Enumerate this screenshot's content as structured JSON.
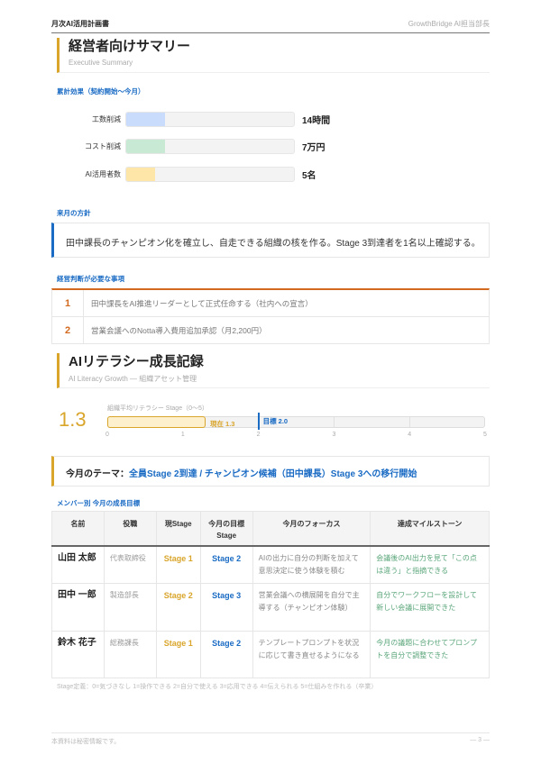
{
  "header": {
    "title": "月次AI活用計画書",
    "author": "GrowthBridge AI担当部長"
  },
  "summary": {
    "title": "経営者向けサマリー",
    "subtitle": "Executive Summary",
    "effects_label": "累計効果（契約開始〜今月）",
    "effects": [
      {
        "label": "工数削減",
        "value": "14時間",
        "fill_pct": 23,
        "color": "#c9dcfb"
      },
      {
        "label": "コスト削減",
        "value": "7万円",
        "fill_pct": 23,
        "color": "#c8ead5"
      },
      {
        "label": "AI活用者数",
        "value": "5名",
        "fill_pct": 17,
        "color": "#fde6a8"
      }
    ],
    "policy_label": "来月の方針",
    "policy": "田中課長のチャンピオン化を確立し、自走できる組織の核を作る。Stage 3到達者を1名以上確認する。",
    "decisions_label": "経営判断が必要な事項",
    "decisions": [
      {
        "no": "1",
        "text": "田中課長をAI推進リーダーとして正式任命する（社内への宣言）"
      },
      {
        "no": "2",
        "text": "営業会議へのNotta導入費用追加承認（月2,200円）"
      }
    ]
  },
  "literacy": {
    "title": "AIリテラシー成長記録",
    "subtitle": "AI Literacy Growth — 組織アセット管理",
    "average": "1.3",
    "gauge_label": "組織平均リテラシー Stage（0〜5）",
    "current": 1.3,
    "current_label": "現在 1.3",
    "target": 2.0,
    "target_label": "目標 2.0",
    "scale_max": 5,
    "ticks": [
      "0",
      "1",
      "2",
      "3",
      "4",
      "5"
    ],
    "theme_label": "今月のテーマ：",
    "theme": "全員Stage 2到達 / チャンピオン候補（田中課長）Stage 3への移行開始",
    "members_label": "メンバー別 今月の成長目標",
    "columns": [
      "名前",
      "役職",
      "現Stage",
      "今月の目標Stage",
      "今月のフォーカス",
      "達成マイルストーン"
    ],
    "members": [
      {
        "name": "山田 太郎",
        "role": "代表取締役",
        "current": "Stage 1",
        "goal": "Stage 2",
        "focus": "AIの出力に自分の判断を加えて意思決定に使う体験を積む",
        "milestone": "会議後のAI出力を見て「この点は違う」と指摘できる"
      },
      {
        "name": "田中 一郎",
        "role": "製造部長",
        "current": "Stage 2",
        "goal": "Stage 3",
        "focus": "営業会議への横展開を自分で主導する（チャンピオン体験）",
        "milestone": "自分でワークフローを設計して新しい会議に展開できた"
      },
      {
        "name": "鈴木 花子",
        "role": "総務課長",
        "current": "Stage 1",
        "goal": "Stage 2",
        "focus": "テンプレートプロンプトを状況に応じて書き直せるようになる",
        "milestone": "今月の議題に合わせてプロンプトを自分で調整できた"
      }
    ],
    "definition": "Stage定義：0=気づきなし 1=操作できる 2=自分で使える 3=応用できる 4=伝えられる 5=仕組みを作れる（卒業）"
  },
  "footer": {
    "note": "本資料は秘密情報です。",
    "page": "— 3 —"
  }
}
